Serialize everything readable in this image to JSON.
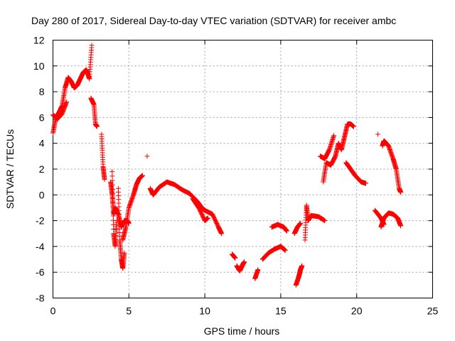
{
  "chart_data": {
    "type": "scatter",
    "title": "Day 280 of 2017, Sidereal Day-to-day VTEC variation (SDTVAR) for receiver ambc",
    "xlabel": "GPS time / hours",
    "ylabel": "SDTVAR / TECUs",
    "xlim": [
      0,
      25
    ],
    "ylim": [
      -8,
      12
    ],
    "xticks": [
      "0",
      "5",
      "10",
      "15",
      "20",
      "25"
    ],
    "yticks": [
      "-8",
      "-6",
      "-4",
      "-2",
      "0",
      "2",
      "4",
      "6",
      "8",
      "10",
      "12"
    ],
    "grid": true,
    "marker": "+",
    "series": [
      {
        "name": "SDTVAR",
        "color": "#ff0000",
        "segments": [
          [
            [
              0.0,
              4.8
            ],
            [
              0.2,
              6.0
            ],
            [
              0.4,
              6.4
            ],
            [
              0.6,
              6.9
            ],
            [
              0.8,
              8.3
            ],
            [
              1.0,
              9.1
            ],
            [
              1.2,
              8.8
            ],
            [
              1.4,
              8.3
            ],
            [
              1.6,
              8.5
            ],
            [
              1.8,
              9.0
            ],
            [
              2.0,
              9.5
            ],
            [
              2.2,
              9.7
            ],
            [
              2.4,
              9.0
            ],
            [
              2.55,
              11.6
            ]
          ],
          [
            [
              0.0,
              6.2
            ],
            [
              0.3,
              5.9
            ],
            [
              0.6,
              6.3
            ],
            [
              0.9,
              7.2
            ]
          ],
          [
            [
              2.5,
              7.5
            ],
            [
              2.7,
              7.0
            ],
            [
              2.8,
              5.5
            ],
            [
              2.9,
              5.3
            ]
          ],
          [
            [
              3.2,
              4.7
            ],
            [
              3.3,
              2.2
            ],
            [
              3.4,
              1.2
            ]
          ],
          [
            [
              3.8,
              1.0
            ],
            [
              3.9,
              0.0
            ],
            [
              4.0,
              -1.5
            ],
            [
              4.1,
              -1.0
            ],
            [
              4.3,
              -1.5
            ],
            [
              4.5,
              -2.5
            ],
            [
              4.7,
              -2.0
            ],
            [
              4.9,
              -2.0
            ],
            [
              5.0,
              -2.2
            ]
          ],
          [
            [
              3.9,
              1.8
            ],
            [
              4.0,
              -3.0
            ],
            [
              4.1,
              -4.0
            ],
            [
              4.2,
              -2.0
            ]
          ],
          [
            [
              4.3,
              0.5
            ],
            [
              4.4,
              -3.5
            ],
            [
              4.5,
              -5.0
            ],
            [
              4.6,
              -5.7
            ],
            [
              4.7,
              -4.5
            ]
          ],
          [
            [
              4.6,
              -3.5
            ],
            [
              4.8,
              -2.5
            ],
            [
              5.0,
              -1.0
            ],
            [
              5.3,
              0.0
            ],
            [
              5.5,
              0.8
            ],
            [
              5.7,
              1.3
            ],
            [
              5.9,
              1.5
            ]
          ],
          [
            [
              6.2,
              3.0
            ]
          ],
          [
            [
              6.4,
              0.5
            ],
            [
              6.6,
              0.0
            ],
            [
              7.0,
              0.6
            ],
            [
              7.5,
              1.0
            ],
            [
              8.0,
              0.8
            ],
            [
              8.5,
              0.4
            ],
            [
              9.0,
              0.1
            ],
            [
              9.5,
              -0.5
            ],
            [
              9.8,
              -1.0
            ],
            [
              10.0,
              -1.2
            ],
            [
              10.5,
              -1.5
            ],
            [
              10.9,
              -2.5
            ],
            [
              11.1,
              -3.0
            ]
          ],
          [
            [
              9.2,
              -0.3
            ],
            [
              9.6,
              -1.0
            ],
            [
              10.0,
              -2.0
            ],
            [
              10.2,
              -1.8
            ]
          ],
          [
            [
              11.8,
              -4.6
            ],
            [
              12.0,
              -4.9
            ]
          ],
          [
            [
              12.1,
              -5.5
            ],
            [
              12.3,
              -5.9
            ],
            [
              12.5,
              -5.4
            ],
            [
              12.6,
              -5.2
            ]
          ],
          [
            [
              13.3,
              -6.5
            ],
            [
              13.5,
              -5.8
            ]
          ],
          [
            [
              13.8,
              -5.0
            ],
            [
              14.2,
              -4.5
            ],
            [
              14.6,
              -4.2
            ],
            [
              15.0,
              -4.0
            ],
            [
              15.3,
              -4.3
            ]
          ],
          [
            [
              14.4,
              -2.5
            ],
            [
              14.8,
              -2.3
            ],
            [
              15.2,
              -2.5
            ],
            [
              15.4,
              -2.8
            ]
          ],
          [
            [
              16.0,
              -7.0
            ],
            [
              16.2,
              -6.3
            ],
            [
              16.3,
              -5.8
            ],
            [
              16.4,
              -5.5
            ]
          ],
          [
            [
              15.9,
              -3.0
            ],
            [
              16.1,
              -2.5
            ],
            [
              16.3,
              -2.2
            ]
          ],
          [
            [
              16.6,
              -3.5
            ],
            [
              16.7,
              -0.8
            ],
            [
              16.8,
              -2.0
            ],
            [
              17.0,
              -1.6
            ],
            [
              17.5,
              -1.7
            ],
            [
              17.9,
              -2.0
            ]
          ],
          [
            [
              17.8,
              1.0
            ],
            [
              18.0,
              2.5
            ],
            [
              18.3,
              2.3
            ],
            [
              18.6,
              3.0
            ],
            [
              18.8,
              4.0
            ],
            [
              19.0,
              3.5
            ],
            [
              19.2,
              4.5
            ],
            [
              19.4,
              5.5
            ],
            [
              19.6,
              5.5
            ],
            [
              19.8,
              5.3
            ]
          ],
          [
            [
              17.6,
              3.0
            ],
            [
              17.9,
              2.8
            ],
            [
              18.2,
              3.5
            ],
            [
              18.5,
              4.6
            ]
          ],
          [
            [
              19.3,
              2.5
            ],
            [
              19.6,
              2.0
            ],
            [
              19.9,
              1.5
            ],
            [
              20.3,
              1.0
            ],
            [
              20.6,
              0.9
            ]
          ],
          [
            [
              21.4,
              4.7
            ]
          ],
          [
            [
              21.2,
              -1.2
            ],
            [
              21.6,
              -1.8
            ],
            [
              21.8,
              -2.3
            ]
          ],
          [
            [
              21.6,
              -2.5
            ],
            [
              21.8,
              -1.8
            ],
            [
              22.1,
              -1.4
            ],
            [
              22.4,
              -1.5
            ],
            [
              22.7,
              -1.8
            ],
            [
              22.9,
              -2.4
            ]
          ],
          [
            [
              21.7,
              3.8
            ],
            [
              21.8,
              4.2
            ],
            [
              22.1,
              3.8
            ],
            [
              22.4,
              2.8
            ],
            [
              22.6,
              2.0
            ],
            [
              22.8,
              0.5
            ],
            [
              22.9,
              0.2
            ]
          ]
        ]
      }
    ]
  }
}
